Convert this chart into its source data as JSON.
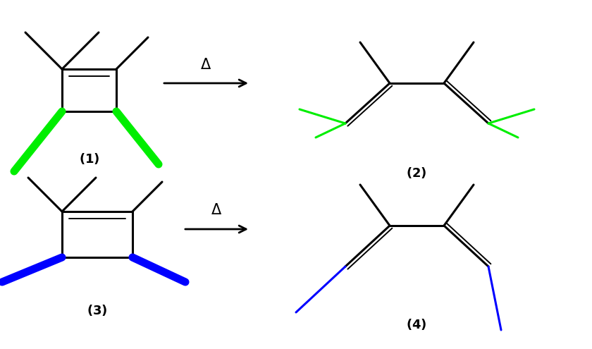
{
  "bg_color": "#ffffff",
  "black": "#000000",
  "green": "#00ee00",
  "blue": "#0000ff",
  "lw_main": 2.2,
  "lw_color": 8,
  "lw_dbl": 1.4,
  "lw_arrow": 2.0
}
